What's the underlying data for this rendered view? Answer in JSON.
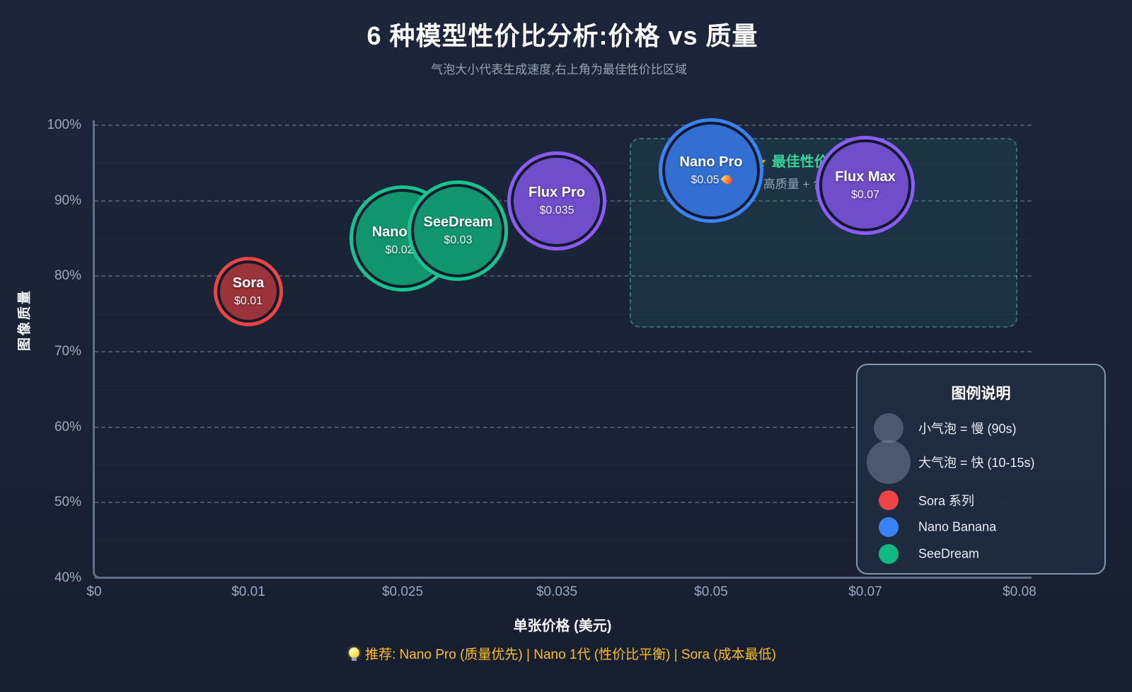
{
  "title": "6 种模型性价比分析:价格 vs 质量",
  "subtitle": "气泡大小代表生成速度,右上角为最佳性价比区域",
  "axes": {
    "x_label": "单张价格 (美元)",
    "y_label": "图像质量",
    "x_tick_labels": [
      "$0",
      "$0.01",
      "$0.025",
      "$0.035",
      "$0.05",
      "$0.07",
      "$0.08"
    ],
    "y_tick_labels": [
      "100%",
      "90%",
      "80%",
      "70%",
      "60%",
      "50%",
      "40%"
    ]
  },
  "zone": {
    "icon": "star-icon",
    "label": "最佳性价比区域",
    "sublabel": "高质量 + 合理价格"
  },
  "legend": {
    "title": "图例说明",
    "size_items": [
      {
        "label": "小气泡 = 慢 (90s)",
        "size": "small"
      },
      {
        "label": "大气泡 = 快 (10-15s)",
        "size": "large"
      }
    ],
    "series_items": [
      {
        "label": "Sora 系列",
        "color": "#ef4444"
      },
      {
        "label": "Nano Banana",
        "color": "#3b82f6"
      },
      {
        "label": "SeeDream",
        "color": "#10b981"
      }
    ]
  },
  "footer": {
    "icon": "bulb-icon",
    "text": "推荐: Nano Pro (质量优先) | Nano 1代 (性价比平衡) | Sora (成本最低)"
  },
  "chart_data": {
    "type": "scatter",
    "subtype": "bubble",
    "title": "6 种模型性价比分析:价格 vs 质量",
    "subtitle": "气泡大小代表生成速度,右上角为最佳性价比区域",
    "xlabel": "单张价格 (美元)",
    "ylabel": "图像质量",
    "x_tick_labels": [
      "$0",
      "$0.01",
      "$0.025",
      "$0.035",
      "$0.05",
      "$0.07",
      "$0.08"
    ],
    "y_tick_labels": [
      "100%",
      "90%",
      "80%",
      "70%",
      "60%",
      "50%",
      "40%"
    ],
    "ylim_pct": [
      40,
      100
    ],
    "bubble_size_meaning": "生成速度 (大=快 10-15s, 小=慢 90s)",
    "grid": "dashed horizontal",
    "legend_position": "bottom-right",
    "points": [
      {
        "name": "Sora",
        "price_label": "$0.01",
        "price_usd": 0.01,
        "quality_pct": 78,
        "speed": "慢 (90s)",
        "size": "small",
        "color": "#ef4444",
        "flame": false
      },
      {
        "name": "Nano 1代",
        "price_label": "$0.025",
        "price_usd": 0.025,
        "quality_pct": 85,
        "speed": "快 (10-15s)",
        "size": "large",
        "color": "#10b981",
        "flame": false
      },
      {
        "name": "SeeDream",
        "price_label": "$0.03",
        "price_usd": 0.03,
        "quality_pct": 86,
        "speed": "快 (10-15s)",
        "size": "large",
        "color": "#10b981",
        "flame": false
      },
      {
        "name": "Flux Pro",
        "price_label": "$0.035",
        "price_usd": 0.035,
        "quality_pct": 90,
        "speed": "快 (10-15s)",
        "size": "large",
        "color": "#8b5cf6",
        "flame": false
      },
      {
        "name": "Nano Pro",
        "price_label": "$0.05",
        "price_usd": 0.05,
        "quality_pct": 94,
        "speed": "快 (10-15s)",
        "size": "large",
        "color": "#3b82f6",
        "flame": true
      },
      {
        "name": "Flux Max",
        "price_label": "$0.07",
        "price_usd": 0.07,
        "quality_pct": 92,
        "speed": "快 (10-15s)",
        "size": "large",
        "color": "#8b5cf6",
        "flame": false
      }
    ],
    "annotation_zone": {
      "label": "最佳性价比区域",
      "sublabel": "高质量 + 合理价格",
      "position": "top-right"
    }
  }
}
